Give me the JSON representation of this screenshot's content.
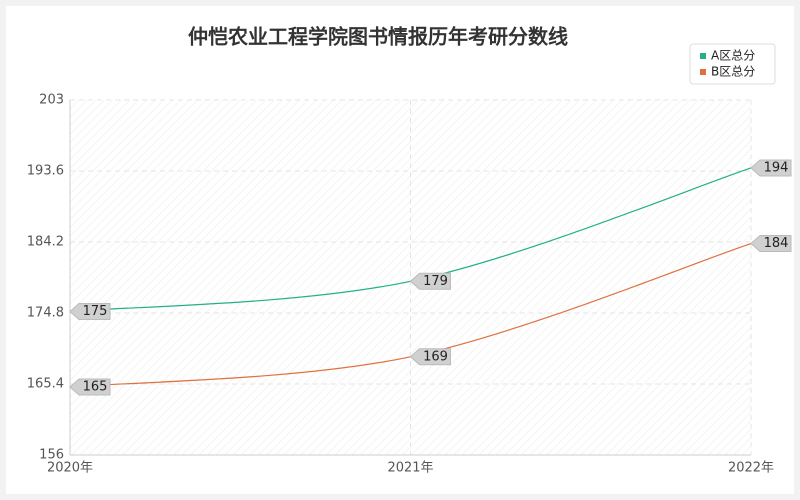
{
  "chart_data": {
    "type": "line",
    "title": "仲恺农业工程学院图书情报历年考研分数线",
    "x": [
      "2020年",
      "2021年",
      "2022年"
    ],
    "series": [
      {
        "name": "A区总分",
        "color": "#20b08a",
        "values": [
          175,
          179,
          194
        ]
      },
      {
        "name": "B区总分",
        "color": "#e0703e",
        "values": [
          165,
          169,
          184
        ]
      }
    ],
    "ylim": [
      156,
      203
    ],
    "yticks": [
      156,
      165.4,
      174.8,
      184.2,
      193.6,
      203
    ],
    "grid": true,
    "legend": "top-right"
  }
}
